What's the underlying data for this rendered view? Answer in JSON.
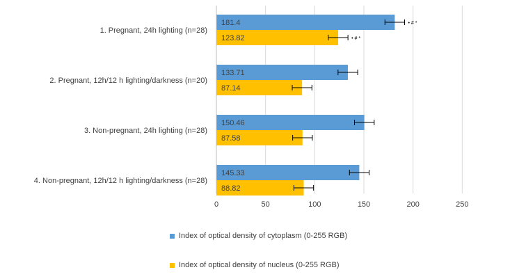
{
  "chart_data": {
    "type": "bar",
    "orientation": "horizontal",
    "categories": [
      "1. Pregnant, 24h lighting (n=28)",
      "2. Pregnant, 12h/12 h lighting/darkness (n=20)",
      "3. Non-pregnant, 24h lighting (n=28)",
      "4. Non-pregnant, 12h/12 h lighting/darkness (n=28)"
    ],
    "series": [
      {
        "name": "Index of optical density of cytoplasm (0-255 RGB)",
        "color": "#5B9BD5",
        "values": [
          181.4,
          133.71,
          150.46,
          145.33
        ],
        "value_labels": [
          "181.4",
          "133.71",
          "150.46",
          "145.33"
        ],
        "error": [
          10,
          10,
          10,
          10
        ],
        "annotations": [
          "• # *",
          "",
          "",
          ""
        ]
      },
      {
        "name": "Index of optical density of nucleus (0-255 RGB)",
        "color": "#FFC000",
        "values": [
          123.82,
          87.14,
          87.58,
          88.82
        ],
        "value_labels": [
          "123.82",
          "87.14",
          "87.58",
          "88.82"
        ],
        "error": [
          10,
          10,
          10,
          10
        ],
        "annotations": [
          "• # *",
          "",
          "",
          ""
        ]
      }
    ],
    "xlim": [
      0,
      250
    ],
    "xticks": [
      0,
      50,
      100,
      150,
      200,
      250
    ],
    "grid": true,
    "legend_position": "bottom"
  }
}
